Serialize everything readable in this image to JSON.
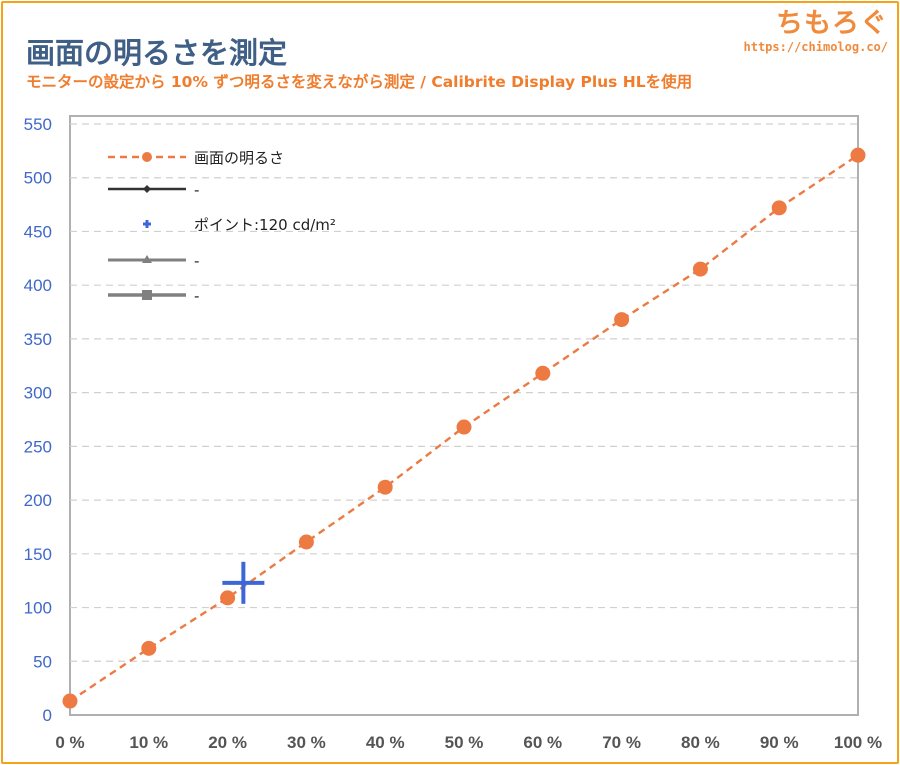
{
  "page": {
    "title": "画面の明るさを測定",
    "subtitle": "モニターの設定から 10% ずつ明るさを変えながら測定 / Calibrite Display Plus HLを使用",
    "brand": "ちもろぐ",
    "brand_url": "https://chimolog.co/"
  },
  "colors": {
    "series": "#ec7a42",
    "point": "#3b67d8",
    "legend_dark": "#333333",
    "legend_gray": "#808080",
    "grid": "#d0d0d0",
    "accent": "#f5a31a"
  },
  "chart_data": {
    "type": "line",
    "title": "画面の明るさを測定",
    "subtitle": "モニターの設定から 10% ずつ明るさを変えながら測定 / Calibrite Display Plus HLを使用",
    "x": [
      0,
      10,
      20,
      30,
      40,
      50,
      60,
      70,
      80,
      90,
      100
    ],
    "x_tick_labels": [
      "0 %",
      "10 %",
      "20 %",
      "30 %",
      "40 %",
      "50 %",
      "60 %",
      "70 %",
      "80 %",
      "90 %",
      "100 %"
    ],
    "y_ticks": [
      "0",
      "50",
      "100",
      "150",
      "200",
      "250",
      "300",
      "350",
      "400",
      "450",
      "500",
      "550"
    ],
    "xlim": [
      0,
      100
    ],
    "ylim": [
      0,
      550
    ],
    "grid": true,
    "legend_position": "top-left",
    "series": [
      {
        "name": "画面の明るさ",
        "values": [
          13,
          62,
          109,
          161,
          212,
          268,
          318,
          368,
          415,
          472,
          521
        ],
        "style": "dashed-circle"
      }
    ],
    "point": {
      "name": "ポイント:120 cd/m²",
      "x": 22,
      "y": 123
    },
    "legend": [
      {
        "label": "画面の明るさ",
        "marker": "dashed-circle"
      },
      {
        "label": "-",
        "marker": "diamond"
      },
      {
        "label": "ポイント:120 cd/m²",
        "marker": "plus"
      },
      {
        "label": "-",
        "marker": "triangle"
      },
      {
        "label": "-",
        "marker": "square"
      }
    ]
  }
}
